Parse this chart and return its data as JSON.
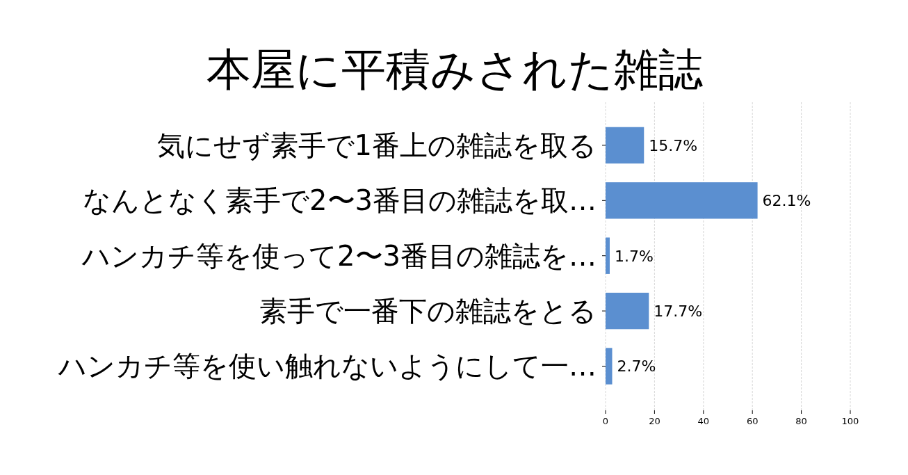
{
  "chart_data": {
    "type": "bar",
    "orientation": "horizontal",
    "title": "本屋に平積みされた雑誌",
    "categories": [
      "気にせず素手で1番上の雑誌を取る",
      "なんとなく素手で2〜3番目の雑誌を取…",
      "ハンカチ等を使って2〜3番目の雑誌を…",
      "素手で一番下の雑誌をとる",
      "ハンカチ等を使い触れないようにして一…"
    ],
    "values": [
      15.7,
      62.1,
      1.7,
      17.7,
      2.7
    ],
    "value_labels": [
      "15.7%",
      "62.1%",
      "1.7%",
      "17.7%",
      "2.7%"
    ],
    "color": "#5b8fd0",
    "xlim": [
      0,
      100
    ],
    "xticks": [
      0,
      20,
      40,
      60,
      80,
      100
    ],
    "grid": "x"
  }
}
